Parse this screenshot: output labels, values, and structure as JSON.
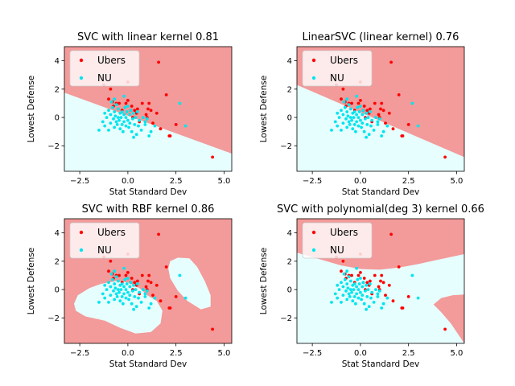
{
  "figure": {
    "background": "#ffffff",
    "region_colors": {
      "ubers": "#f39a9a",
      "nu": "#e6fefe"
    }
  },
  "chart_data": [
    {
      "type": "scatter",
      "title": "SVC with linear kernel 0.81",
      "xlabel": "Stat Standard Dev",
      "ylabel": "Lowest Defense",
      "xlim": [
        -3.3,
        5.4
      ],
      "ylim": [
        -3.8,
        5.0
      ],
      "xticks": [
        -2.5,
        0.0,
        2.5,
        5.0
      ],
      "xtick_labels": [
        "−2.5",
        "0.0",
        "2.5",
        "5.0"
      ],
      "yticks": [
        -2,
        0,
        2,
        4
      ],
      "ytick_labels": [
        "−2",
        "0",
        "2",
        "4"
      ],
      "legend": {
        "position": "top-left",
        "entries": [
          {
            "label": "Ubers",
            "color": "#ff0000"
          },
          {
            "label": "NU",
            "color": "#00e5ee"
          }
        ]
      },
      "decision_regions": {
        "kind": "linear",
        "boundary": [
          [
            -3.3,
            1.75
          ],
          [
            5.4,
            -2.55
          ]
        ],
        "upper_class": "Ubers",
        "lower_class": "NU"
      }
    },
    {
      "type": "scatter",
      "title": "LinearSVC (linear kernel) 0.76",
      "xlabel": "Stat Standard Dev",
      "ylabel": "Lowest Defense",
      "xlim": [
        -3.3,
        5.4
      ],
      "ylim": [
        -3.8,
        5.0
      ],
      "xticks": [
        -2.5,
        0.0,
        2.5,
        5.0
      ],
      "xtick_labels": [
        "−2.5",
        "0.0",
        "2.5",
        "5.0"
      ],
      "yticks": [
        -2,
        0,
        2,
        4
      ],
      "ytick_labels": [
        "−2",
        "0",
        "2",
        "4"
      ],
      "legend": {
        "position": "top-left",
        "entries": [
          {
            "label": "Ubers",
            "color": "#ff0000"
          },
          {
            "label": "NU",
            "color": "#00e5ee"
          }
        ]
      },
      "decision_regions": {
        "kind": "linear",
        "boundary": [
          [
            -3.3,
            2.3
          ],
          [
            5.4,
            -2.8
          ]
        ],
        "upper_class": "Ubers",
        "lower_class": "NU"
      }
    },
    {
      "type": "scatter",
      "title": "SVC with RBF kernel 0.86",
      "xlabel": "Stat Standard Dev",
      "ylabel": "Lowest Defense",
      "xlim": [
        -3.3,
        5.4
      ],
      "ylim": [
        -3.8,
        5.0
      ],
      "xticks": [
        -2.5,
        0.0,
        2.5,
        5.0
      ],
      "xtick_labels": [
        "−2.5",
        "0.0",
        "2.5",
        "5.0"
      ],
      "yticks": [
        -2,
        0,
        2,
        4
      ],
      "ytick_labels": [
        "−2",
        "0",
        "2",
        "4"
      ],
      "legend": {
        "position": "top-left",
        "entries": [
          {
            "label": "Ubers",
            "color": "#ff0000"
          },
          {
            "label": "NU",
            "color": "#00e5ee"
          }
        ]
      },
      "decision_regions": {
        "kind": "rbf",
        "background_class": "Ubers",
        "nu_regions": [
          [
            [
              -2.8,
              -1.0
            ],
            [
              -2.6,
              -0.4
            ],
            [
              -2.0,
              0.1
            ],
            [
              -1.4,
              0.4
            ],
            [
              -0.6,
              0.6
            ],
            [
              0.0,
              0.5
            ],
            [
              0.6,
              0.1
            ],
            [
              1.0,
              -0.4
            ],
            [
              1.5,
              -0.8
            ],
            [
              1.8,
              -1.5
            ],
            [
              1.7,
              -2.4
            ],
            [
              1.2,
              -3.0
            ],
            [
              0.4,
              -3.1
            ],
            [
              -0.4,
              -2.7
            ],
            [
              -1.2,
              -2.2
            ],
            [
              -2.2,
              -1.9
            ],
            [
              -2.7,
              -1.5
            ]
          ],
          [
            [
              2.2,
              2.0
            ],
            [
              2.6,
              2.25
            ],
            [
              3.2,
              2.2
            ],
            [
              3.6,
              1.6
            ],
            [
              4.0,
              0.6
            ],
            [
              4.3,
              -0.4
            ],
            [
              4.3,
              -1.2
            ],
            [
              3.8,
              -1.4
            ],
            [
              3.1,
              -0.8
            ],
            [
              2.6,
              -0.1
            ],
            [
              2.2,
              0.8
            ],
            [
              2.1,
              1.5
            ]
          ]
        ]
      }
    },
    {
      "type": "scatter",
      "title": "SVC with polynomial(deg 3) kernel 0.66",
      "xlabel": "Stat Standard Dev",
      "ylabel": "Lowest Defense",
      "xlim": [
        -3.3,
        5.4
      ],
      "ylim": [
        -3.8,
        5.0
      ],
      "xticks": [
        -2.5,
        0.0,
        2.5,
        5.0
      ],
      "xtick_labels": [
        "−2.5",
        "0.0",
        "2.5",
        "5.0"
      ],
      "yticks": [
        -2,
        0,
        2,
        4
      ],
      "ytick_labels": [
        "−2",
        "0",
        "2",
        "4"
      ],
      "legend": {
        "position": "top-left",
        "entries": [
          {
            "label": "Ubers",
            "color": "#ff0000"
          },
          {
            "label": "NU",
            "color": "#00e5ee"
          }
        ]
      },
      "decision_regions": {
        "kind": "polynomial",
        "upper_boundary": [
          [
            -3.3,
            2.6
          ],
          [
            -2.0,
            2.1
          ],
          [
            -1.0,
            1.7
          ],
          [
            0.0,
            1.45
          ],
          [
            1.0,
            1.4
          ],
          [
            2.0,
            1.55
          ],
          [
            3.0,
            1.8
          ],
          [
            4.0,
            2.1
          ],
          [
            5.4,
            2.5
          ]
        ],
        "lower_region": [
          [
            3.8,
            -1.05
          ],
          [
            4.2,
            -0.6
          ],
          [
            4.8,
            -0.4
          ],
          [
            5.4,
            -0.35
          ],
          [
            5.4,
            -3.8
          ],
          [
            5.1,
            -3.2
          ],
          [
            4.7,
            -2.4
          ],
          [
            4.2,
            -1.6
          ]
        ],
        "upper_class": "Ubers",
        "lower_class": "NU"
      }
    }
  ],
  "points": {
    "ubers": {
      "label": "Ubers",
      "color": "#ff0000",
      "x": [
        -1.25,
        -1.0,
        -0.9,
        -0.75,
        -0.6,
        -0.45,
        -0.3,
        -0.1,
        0.0,
        0.15,
        0.25,
        0.35,
        0.5,
        0.75,
        0.95,
        1.05,
        1.1,
        1.2,
        1.3,
        1.5,
        1.6,
        1.7,
        2.0,
        2.15,
        2.2,
        2.5,
        4.4,
        0.0,
        0.2,
        0.45,
        -0.8,
        0.6,
        1.0
      ],
      "y": [
        2.3,
        1.3,
        2.0,
        0.8,
        1.0,
        1.0,
        0.5,
        1.0,
        2.5,
        0.5,
        0.0,
        0.5,
        0.6,
        1.0,
        0.2,
        0.6,
        1.0,
        0.5,
        -0.4,
        0.3,
        3.9,
        -0.8,
        1.6,
        -1.3,
        -1.3,
        -0.5,
        -2.8,
        1.2,
        0.8,
        0.3,
        1.1,
        -0.3,
        0.0
      ]
    },
    "nu": {
      "label": "NU",
      "color": "#00e5ee",
      "x": [
        -1.5,
        -1.3,
        -1.2,
        -1.2,
        -1.1,
        -1.0,
        -1.0,
        -0.9,
        -0.9,
        -0.85,
        -0.8,
        -0.75,
        -0.7,
        -0.7,
        -0.65,
        -0.6,
        -0.6,
        -0.55,
        -0.5,
        -0.5,
        -0.45,
        -0.4,
        -0.4,
        -0.35,
        -0.3,
        -0.3,
        -0.25,
        -0.2,
        -0.2,
        -0.15,
        -0.1,
        -0.1,
        -0.05,
        0.0,
        0.0,
        0.05,
        0.1,
        0.1,
        0.15,
        0.2,
        0.25,
        0.3,
        0.35,
        0.4,
        0.45,
        0.5,
        0.55,
        0.6,
        0.7,
        0.8,
        0.9,
        1.0,
        1.1,
        1.2,
        1.4,
        2.7,
        3.0,
        0.3,
        -0.2,
        -0.7,
        0.9
      ],
      "y": [
        -0.9,
        -0.3,
        0.3,
        -0.6,
        0.0,
        0.5,
        -0.9,
        0.2,
        -0.4,
        1.1,
        0.7,
        -0.1,
        0.4,
        -0.7,
        0.1,
        -0.3,
        0.9,
        -0.5,
        0.0,
        0.6,
        -0.2,
        0.3,
        -0.8,
        0.0,
        -0.5,
        0.4,
        -1.0,
        0.2,
        -0.3,
        0.7,
        -0.6,
        0.0,
        0.4,
        -0.2,
        0.8,
        -0.7,
        0.2,
        -0.4,
        0.5,
        -1.0,
        -0.1,
        0.3,
        -0.5,
        0.0,
        -1.2,
        0.4,
        -0.6,
        -0.2,
        -0.9,
        0.0,
        -0.5,
        -0.1,
        -1.3,
        -1.0,
        -0.6,
        1.0,
        -0.6,
        -1.4,
        1.5,
        1.3,
        -0.3
      ]
    }
  }
}
